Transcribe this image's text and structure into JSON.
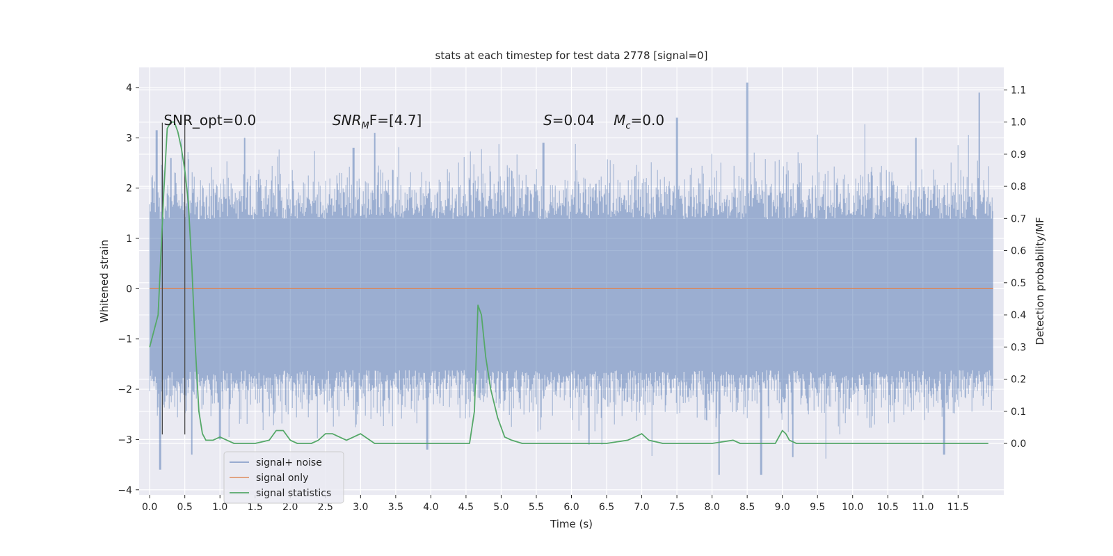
{
  "chart_data": {
    "type": "line",
    "title": "stats at each timestep for test data 2778 [signal=0]",
    "xlabel": "Time (s)",
    "ylabel": "Whitened strain",
    "y2label": "Detection probability/MF",
    "xlim": [
      -0.15,
      12.15
    ],
    "ylim": [
      -4.1,
      4.4
    ],
    "y2lim": [
      -0.16,
      1.17
    ],
    "x_ticks": [
      0.0,
      0.5,
      1.0,
      1.5,
      2.0,
      2.5,
      3.0,
      3.5,
      4.0,
      4.5,
      5.0,
      5.5,
      6.0,
      6.5,
      7.0,
      7.5,
      8.0,
      8.5,
      9.0,
      9.5,
      10.0,
      10.5,
      11.0,
      11.5
    ],
    "y_ticks": [
      -4,
      -3,
      -2,
      -1,
      0,
      1,
      2,
      3,
      4
    ],
    "y2_ticks": [
      0.0,
      0.1,
      0.2,
      0.3,
      0.4,
      0.5,
      0.6,
      0.7,
      0.8,
      0.9,
      1.0,
      1.1
    ],
    "grid": true,
    "legend_position": "lower-left",
    "colors": {
      "background": "#eaeaf2",
      "grid": "#ffffff",
      "noise": "#4c72b0",
      "signal": "#dd8452",
      "stats": "#55a868",
      "vline": "#4a4a4a"
    },
    "series": [
      {
        "name": "signal+ noise",
        "x_range": [
          0.0,
          12.0
        ],
        "typical_envelope": [
          -1.6,
          1.4
        ],
        "peaks": [
          {
            "x": 0.1,
            "y": 3.15
          },
          {
            "x": 0.3,
            "y": 2.6
          },
          {
            "x": 0.55,
            "y": 2.5
          },
          {
            "x": 1.35,
            "y": 3.0
          },
          {
            "x": 2.9,
            "y": 2.8
          },
          {
            "x": 3.2,
            "y": 3.1
          },
          {
            "x": 5.6,
            "y": 2.9
          },
          {
            "x": 7.5,
            "y": 3.4
          },
          {
            "x": 8.5,
            "y": 4.1
          },
          {
            "x": 10.9,
            "y": 3.0
          },
          {
            "x": 11.8,
            "y": 3.9
          }
        ],
        "troughs": [
          {
            "x": 0.15,
            "y": -3.6
          },
          {
            "x": 0.6,
            "y": -3.3
          },
          {
            "x": 1.0,
            "y": -3.0
          },
          {
            "x": 3.95,
            "y": -3.2
          },
          {
            "x": 6.25,
            "y": -3.1
          },
          {
            "x": 8.1,
            "y": -3.7
          },
          {
            "x": 8.7,
            "y": -3.7
          },
          {
            "x": 9.15,
            "y": -3.35
          },
          {
            "x": 11.3,
            "y": -3.3
          }
        ]
      },
      {
        "name": "signal only",
        "x": [
          0.0,
          12.0
        ],
        "y": [
          0.0,
          0.0
        ]
      },
      {
        "name": "signal statistics",
        "axis": "right",
        "x": [
          0.0,
          0.12,
          0.2,
          0.25,
          0.3,
          0.35,
          0.4,
          0.45,
          0.5,
          0.55,
          0.6,
          0.65,
          0.7,
          0.75,
          0.8,
          0.9,
          1.0,
          1.1,
          1.2,
          1.5,
          1.7,
          1.8,
          1.9,
          2.0,
          2.1,
          2.3,
          2.4,
          2.5,
          2.6,
          2.7,
          2.8,
          2.9,
          3.0,
          3.2,
          3.5,
          4.0,
          4.55,
          4.62,
          4.67,
          4.72,
          4.78,
          4.85,
          4.95,
          5.05,
          5.15,
          5.3,
          5.5,
          6.0,
          6.5,
          6.8,
          6.9,
          7.0,
          7.1,
          7.3,
          7.5,
          7.9,
          8.0,
          8.3,
          8.4,
          8.6,
          8.9,
          8.95,
          9.0,
          9.05,
          9.1,
          9.2,
          9.5,
          10.0,
          10.5,
          11.0,
          11.93
        ],
        "y": [
          0.3,
          0.4,
          0.78,
          0.98,
          1.0,
          1.0,
          0.97,
          0.92,
          0.85,
          0.75,
          0.55,
          0.3,
          0.1,
          0.03,
          0.01,
          0.01,
          0.02,
          0.01,
          0.0,
          0.0,
          0.01,
          0.04,
          0.04,
          0.01,
          0.0,
          0.0,
          0.01,
          0.03,
          0.03,
          0.02,
          0.01,
          0.02,
          0.03,
          0.0,
          0.0,
          0.0,
          0.0,
          0.1,
          0.43,
          0.4,
          0.27,
          0.17,
          0.08,
          0.02,
          0.01,
          0.0,
          0.0,
          0.0,
          0.0,
          0.01,
          0.02,
          0.03,
          0.01,
          0.0,
          0.0,
          0.0,
          0.0,
          0.01,
          0.0,
          0.0,
          0.0,
          0.02,
          0.04,
          0.03,
          0.01,
          0.0,
          0.0,
          0.0,
          0.0,
          0.0,
          0.0
        ]
      }
    ],
    "vlines": [
      0.18,
      0.5
    ],
    "vline_range": [
      -2.9,
      3.3
    ],
    "annotations": [
      {
        "id": "snr_opt",
        "text": "SNR_opt=0.0",
        "x": 0.2,
        "y": 3.25
      },
      {
        "id": "snr_mf",
        "base": "SNR",
        "sub": "M",
        "rest": "F=[4.7]",
        "x": 2.6,
        "y": 3.25
      },
      {
        "id": "s_val",
        "base": "S",
        "rest": "=0.04",
        "x": 5.6,
        "y": 3.25
      },
      {
        "id": "mc_val",
        "base": "M",
        "sub": "c",
        "rest": "=0.0",
        "x": 6.6,
        "y": 3.25
      }
    ],
    "legend": [
      "signal+ noise",
      "signal only",
      "signal statistics"
    ]
  }
}
